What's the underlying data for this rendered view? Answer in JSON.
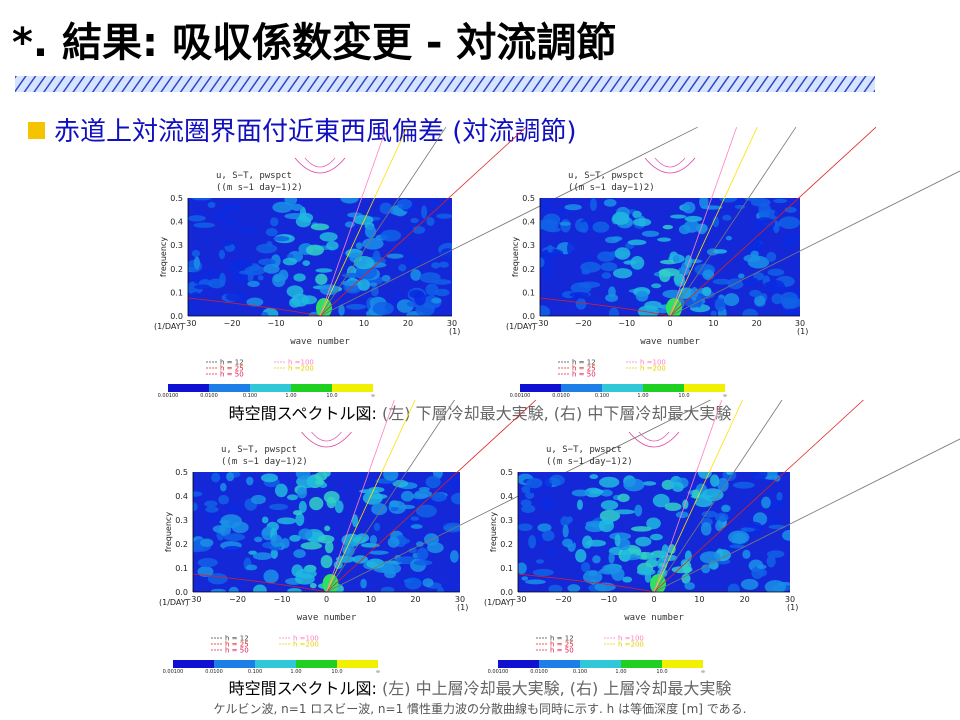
{
  "header": {
    "title": "*. 結果: 吸収係数変更 - 対流調節"
  },
  "subtitle": "赤道上対流圏界面付近東西風偏差 (対流調節)",
  "spectrum_plot": {
    "title": "u, S−T, pwspct",
    "units": "((m s−1 day−1)2)",
    "y_axis_label": "frequency",
    "x_axis_label": "wave number",
    "y_unit": "(1/DAY)",
    "x_unit": "(1)",
    "y_ticks": [
      "0.0",
      "0.1",
      "0.2",
      "0.3",
      "0.4",
      "0.5"
    ],
    "x_ticks": [
      "−30",
      "−20",
      "−10",
      "0",
      "10",
      "20",
      "30"
    ],
    "legend": [
      "h = 12",
      "h = 25",
      "h = 50",
      "h =100",
      "h =200"
    ],
    "colorbar_labels": [
      "0.00100",
      "0.0100",
      "0.100",
      "1.00",
      "10.0",
      "∞"
    ]
  },
  "captions": [
    {
      "lead": "時空間スペクトル図:",
      "left_tag": "(左)",
      "left": "下層冷却最大実験,",
      "right_tag": "(右)",
      "right": "中下層冷却最大実験"
    },
    {
      "lead": "時空間スペクトル図:",
      "left_tag": "(左)",
      "left": "中上層冷却最大実験,",
      "right_tag": "(右)",
      "right": "上層冷却最大実験"
    }
  ],
  "footnote": "ケルビン波, n=1 ロスビー波, n=1 慣性重力波の分散曲線も同時に示す. h は等価深度 [m] である."
}
